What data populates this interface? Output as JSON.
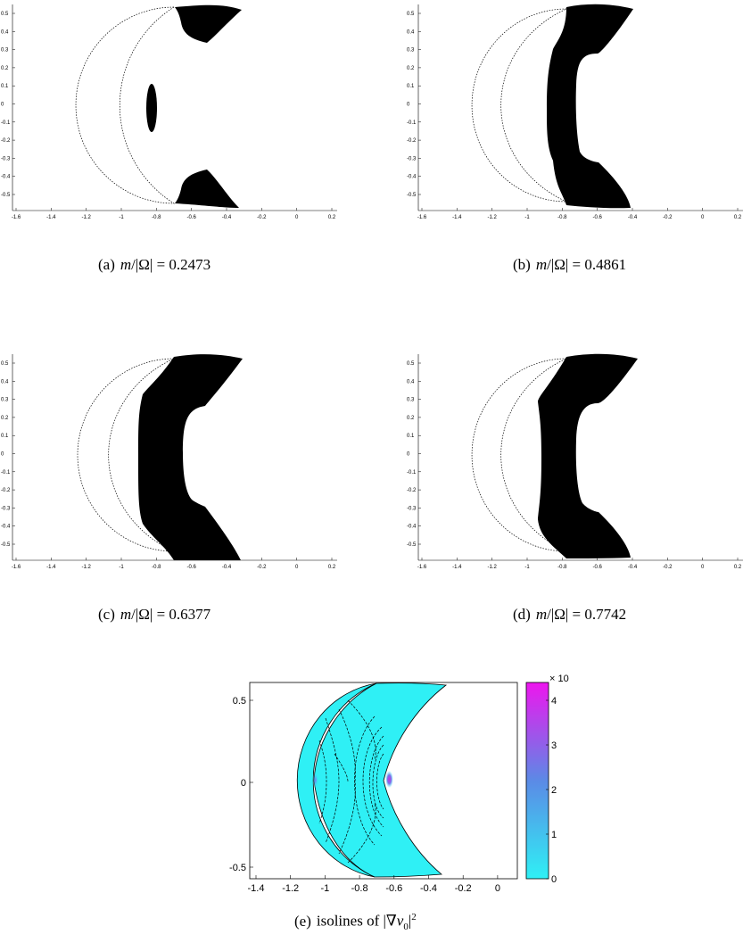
{
  "figure": {
    "panels": [
      {
        "label": "(a)",
        "ratio": "0.2473"
      },
      {
        "label": "(b)",
        "ratio": "0.4861"
      },
      {
        "label": "(c)",
        "ratio": "0.6377"
      },
      {
        "label": "(d)",
        "ratio": "0.7742"
      }
    ],
    "bottom": {
      "label": "(e)",
      "caption_text": "isolines of",
      "colorbar_exponent": "× 10",
      "colorbar_ticks": [
        "0",
        "1",
        "2",
        "3",
        "4"
      ],
      "x_ticks": [
        "-1.4",
        "-1.2",
        "-1",
        "-0.8",
        "-0.6",
        "-0.4",
        "-0.2",
        "0"
      ],
      "y_ticks": [
        "0.5",
        "0",
        "-0.5"
      ]
    },
    "small_x_ticks": [
      "-1.6",
      "-1.4",
      "-1.2",
      "-1",
      "-0.8",
      "-0.6",
      "-0.4",
      "-0.2",
      "0",
      "0.2"
    ],
    "small_y_ticks": [
      "0.5",
      "0.4",
      "0.3",
      "0.2",
      "0.1",
      "0",
      "-0.1",
      "-0.2",
      "-0.3",
      "-0.4",
      "-0.5"
    ],
    "colors": {
      "fill": "#000000",
      "low": "#2ff0f5",
      "mid": "#5b8ae6",
      "high": "#ee16ee"
    }
  }
}
